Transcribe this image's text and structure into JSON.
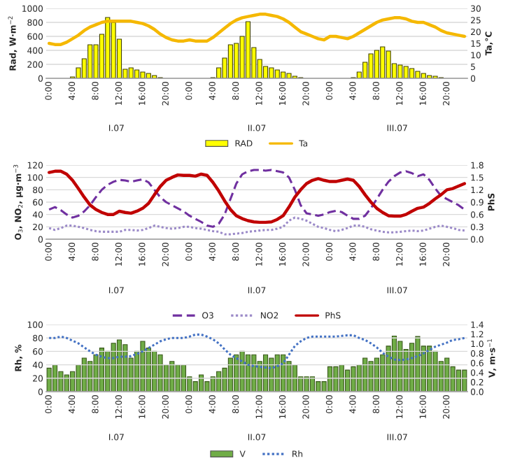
{
  "chart_data": [
    {
      "type": "bar",
      "categories": [
        "0:00",
        null,
        null,
        null,
        "4:00",
        null,
        null,
        null,
        "8:00",
        null,
        null,
        null,
        "12:00",
        null,
        null,
        null,
        "16:00",
        null,
        null,
        null,
        "20:00",
        null,
        null,
        null,
        "0:00",
        null,
        null,
        null,
        "4:00",
        null,
        null,
        null,
        "8:00",
        null,
        null,
        null,
        "12:00",
        null,
        null,
        null,
        "16:00",
        null,
        null,
        null,
        "20:00",
        null,
        null,
        null,
        "0:00",
        null,
        null,
        null,
        "4:00",
        null,
        null,
        null,
        "8:00",
        null,
        null,
        null,
        "12:00",
        null,
        null,
        null,
        "16:00",
        null,
        null,
        null,
        "20:00",
        null,
        null,
        null
      ],
      "ylabel": "Rad, W·m$^{−2}$",
      "y2label": "Ta,°C",
      "annotations": [
        "I.07",
        "II.07",
        "III.07"
      ],
      "ylim": [
        0,
        1000
      ],
      "yticks": [
        0,
        200,
        400,
        600,
        800,
        1000
      ],
      "y2lim": [
        0,
        30
      ],
      "y2ticks": [
        0,
        5,
        10,
        15,
        20,
        25,
        30
      ],
      "grid": "y",
      "legend": "bottom",
      "series": [
        {
          "name": "RAD",
          "type": "bar",
          "color": "#ffff00",
          "values": [
            0,
            0,
            0,
            0,
            20,
            150,
            280,
            480,
            480,
            630,
            870,
            800,
            560,
            130,
            150,
            120,
            90,
            70,
            40,
            10,
            0,
            0,
            0,
            0,
            0,
            0,
            0,
            0,
            10,
            150,
            290,
            480,
            500,
            600,
            810,
            440,
            270,
            170,
            150,
            120,
            90,
            70,
            30,
            10,
            0,
            0,
            0,
            0,
            0,
            0,
            0,
            0,
            10,
            90,
            230,
            350,
            400,
            450,
            390,
            210,
            190,
            170,
            140,
            100,
            70,
            40,
            30,
            10,
            0,
            0,
            0,
            0
          ]
        },
        {
          "name": "Ta",
          "type": "line",
          "axis": "y2",
          "color": "#f5b800",
          "line_style": "solid",
          "values": [
            15,
            14.5,
            14.5,
            15.5,
            17,
            18.5,
            20.5,
            22,
            23,
            24,
            24.5,
            24.5,
            24.5,
            24.5,
            24.5,
            24,
            23.5,
            22.5,
            21,
            19,
            17.5,
            16.5,
            16,
            16,
            16.5,
            16,
            16,
            16,
            17.5,
            19.5,
            21.5,
            23.5,
            25,
            26,
            26.5,
            27,
            27.5,
            27.5,
            27,
            26.5,
            25.5,
            24,
            22,
            20,
            19,
            18,
            17,
            16.5,
            18,
            18,
            17.5,
            17,
            18,
            19.5,
            21,
            22.5,
            24,
            25,
            25.5,
            26,
            26,
            25.5,
            24.5,
            24,
            24,
            23,
            22,
            20.5,
            19.5,
            19,
            18.5,
            18
          ]
        }
      ]
    },
    {
      "type": "line",
      "categories": [
        "0:00",
        null,
        null,
        null,
        "4:00",
        null,
        null,
        null,
        "8:00",
        null,
        null,
        null,
        "12:00",
        null,
        null,
        null,
        "16:00",
        null,
        null,
        null,
        "20:00",
        null,
        null,
        null,
        "0:00",
        null,
        null,
        null,
        "4:00",
        null,
        null,
        null,
        "8:00",
        null,
        null,
        null,
        "12:00",
        null,
        null,
        null,
        "16:00",
        null,
        null,
        null,
        "20:00",
        null,
        null,
        null,
        "0:00",
        null,
        null,
        null,
        "4:00",
        null,
        null,
        null,
        "8:00",
        null,
        null,
        null,
        "12:00",
        null,
        null,
        null,
        "16:00",
        null,
        null,
        null,
        "20:00",
        null,
        null,
        null
      ],
      "ylabel": "O$_{3}$, NO$_{2}$, µg·m$^{−3}$",
      "y2label": "PhS",
      "annotations": [
        "I.07",
        "II.07",
        "III.07"
      ],
      "ylim": [
        0,
        120
      ],
      "yticks": [
        0,
        20,
        40,
        60,
        80,
        100,
        120
      ],
      "y2lim": [
        0,
        1.8
      ],
      "y2ticks": [
        {
          "value": 0,
          "label": "0.0"
        },
        {
          "value": 0.3,
          "label": "0.3"
        },
        {
          "value": 0.6,
          "label": "0.6"
        },
        {
          "value": 0.9,
          "label": "0.9"
        },
        {
          "value": 1.2,
          "label": "1.2"
        },
        {
          "value": 1.5,
          "label": "1.5"
        },
        {
          "value": 1.8,
          "label": "1.8"
        }
      ],
      "grid": "y",
      "legend": "bottom",
      "series": [
        {
          "name": "O3",
          "color": "#7030a0",
          "line_style": "dashed",
          "values": [
            48,
            52,
            47,
            40,
            35,
            38,
            45,
            55,
            68,
            80,
            88,
            93,
            96,
            95,
            93,
            95,
            97,
            92,
            80,
            68,
            60,
            55,
            50,
            45,
            38,
            33,
            28,
            22,
            20,
            25,
            40,
            65,
            90,
            105,
            110,
            112,
            112,
            111,
            112,
            110,
            108,
            100,
            80,
            55,
            42,
            40,
            38,
            40,
            44,
            46,
            44,
            38,
            33,
            33,
            38,
            50,
            65,
            80,
            93,
            102,
            108,
            110,
            107,
            102,
            105,
            96,
            82,
            70,
            65,
            60,
            55,
            48
          ]
        },
        {
          "name": "NO2",
          "color": "#9b8ac8",
          "line_style": "dotted",
          "values": [
            18,
            15,
            18,
            22,
            22,
            20,
            18,
            15,
            13,
            12,
            12,
            12,
            12,
            15,
            15,
            14,
            15,
            18,
            22,
            20,
            18,
            17,
            18,
            20,
            20,
            18,
            17,
            15,
            13,
            12,
            8,
            8,
            9,
            10,
            12,
            13,
            14,
            15,
            15,
            17,
            20,
            30,
            35,
            33,
            30,
            25,
            20,
            18,
            15,
            13,
            15,
            18,
            22,
            22,
            20,
            16,
            14,
            12,
            11,
            11,
            12,
            13,
            14,
            13,
            14,
            17,
            20,
            22,
            20,
            18,
            15,
            14
          ]
        },
        {
          "name": "PhS",
          "axis": "y2",
          "color": "#c00000",
          "line_style": "solid",
          "values": [
            1.62,
            1.65,
            1.65,
            1.58,
            1.43,
            1.23,
            1.02,
            0.83,
            0.72,
            0.65,
            0.6,
            0.6,
            0.68,
            0.65,
            0.63,
            0.68,
            0.75,
            0.87,
            1.08,
            1.28,
            1.43,
            1.5,
            1.56,
            1.55,
            1.55,
            1.53,
            1.58,
            1.55,
            1.38,
            1.17,
            0.93,
            0.72,
            0.57,
            0.5,
            0.45,
            0.42,
            0.41,
            0.41,
            0.42,
            0.48,
            0.57,
            0.78,
            1.02,
            1.2,
            1.35,
            1.43,
            1.47,
            1.43,
            1.4,
            1.4,
            1.43,
            1.46,
            1.43,
            1.28,
            1.08,
            0.9,
            0.75,
            0.65,
            0.57,
            0.56,
            0.56,
            0.6,
            0.68,
            0.75,
            0.78,
            0.87,
            0.98,
            1.08,
            1.2,
            1.23,
            1.29,
            1.35
          ]
        }
      ]
    },
    {
      "type": "bar",
      "categories": [
        "0:00",
        null,
        null,
        null,
        "4:00",
        null,
        null,
        null,
        "8:00",
        null,
        null,
        null,
        "12:00",
        null,
        null,
        null,
        "16:00",
        null,
        null,
        null,
        "20:00",
        null,
        null,
        null,
        "0:00",
        null,
        null,
        null,
        "4:00",
        null,
        null,
        null,
        "8:00",
        null,
        null,
        null,
        "12:00",
        null,
        null,
        null,
        "16:00",
        null,
        null,
        null,
        "20:00",
        null,
        null,
        null,
        "0:00",
        null,
        null,
        null,
        "4:00",
        null,
        null,
        null,
        "8:00",
        null,
        null,
        null,
        "12:00",
        null,
        null,
        null,
        "16:00",
        null,
        null,
        null,
        "20:00",
        null,
        null,
        null
      ],
      "ylabel": "Rh, %",
      "y2label": "V, m·s$^{−1}$",
      "annotations": [
        "I.07",
        "II.07",
        "III.07"
      ],
      "ylim": [
        0,
        100
      ],
      "yticks": [
        0,
        20,
        40,
        60,
        80,
        100
      ],
      "y2lim": [
        0,
        1.4
      ],
      "y2ticks": [
        {
          "value": 0,
          "label": "0.0"
        },
        {
          "value": 0.2,
          "label": "0.2"
        },
        {
          "value": 0.4,
          "label": "0.4"
        },
        {
          "value": 0.6,
          "label": "0.6"
        },
        {
          "value": 0.8,
          "label": "0.8"
        },
        {
          "value": 1.0,
          "label": "1.0"
        },
        {
          "value": 1.2,
          "label": "1.2"
        },
        {
          "value": 1.4,
          "label": "1.4"
        }
      ],
      "grid": "y",
      "legend": "bottom",
      "series": [
        {
          "name": "V",
          "type": "bar",
          "axis": "y2",
          "color": "#70ad47",
          "values": [
            0.49,
            0.56,
            0.42,
            0.35,
            0.42,
            0.56,
            0.7,
            0.63,
            0.77,
            0.91,
            0.84,
            1.01,
            1.08,
            0.98,
            0.7,
            0.84,
            1.05,
            0.91,
            0.84,
            0.77,
            0.56,
            0.63,
            0.56,
            0.56,
            0.31,
            0.21,
            0.35,
            0.21,
            0.31,
            0.42,
            0.49,
            0.7,
            0.77,
            0.84,
            0.77,
            0.77,
            0.63,
            0.77,
            0.7,
            0.77,
            0.77,
            0.63,
            0.56,
            0.31,
            0.31,
            0.31,
            0.21,
            0.21,
            0.52,
            0.52,
            0.56,
            0.45,
            0.52,
            0.56,
            0.7,
            0.63,
            0.7,
            0.77,
            0.95,
            1.16,
            1.05,
            0.88,
            1.01,
            1.15,
            0.95,
            0.95,
            0.84,
            0.63,
            0.7,
            0.52,
            0.45,
            0.45
          ]
        },
        {
          "name": "Rh",
          "type": "line",
          "color": "#4472c4",
          "line_style": "dotted",
          "values": [
            80,
            80,
            82,
            80,
            76,
            72,
            66,
            60,
            55,
            52,
            50,
            50,
            52,
            52,
            53,
            56,
            60,
            65,
            70,
            75,
            78,
            80,
            80,
            80,
            82,
            85,
            85,
            82,
            78,
            72,
            63,
            55,
            50,
            45,
            40,
            38,
            37,
            36,
            35,
            38,
            42,
            55,
            68,
            75,
            80,
            82,
            82,
            82,
            82,
            82,
            83,
            84,
            84,
            80,
            77,
            72,
            66,
            58,
            52,
            48,
            47,
            48,
            50,
            53,
            57,
            62,
            67,
            70,
            73,
            77,
            78,
            80
          ]
        }
      ]
    }
  ]
}
